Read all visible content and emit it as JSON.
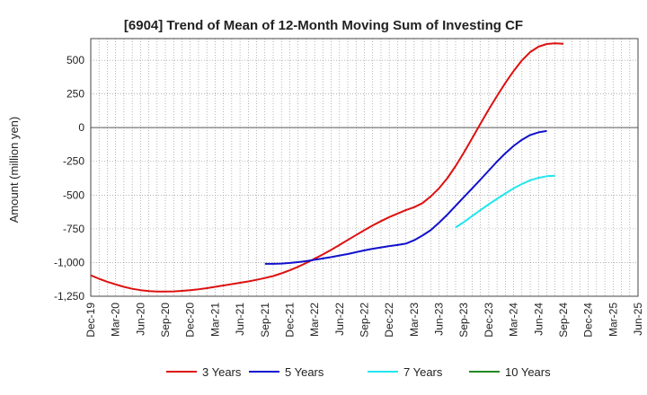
{
  "chart_data": {
    "type": "line",
    "title": "[6904]  Trend of Mean of 12-Month Moving Sum of Investing CF",
    "xlabel": "",
    "ylabel": "Amount (million yen)",
    "ylim": [
      -1250,
      660
    ],
    "yticks": [
      500,
      250,
      0,
      -250,
      -500,
      -750,
      -1000,
      -1250
    ],
    "ytick_labels": [
      "500",
      "250",
      "0",
      "-250",
      "-500",
      "-750",
      "-1,000",
      "-1,250"
    ],
    "x_range": [
      0,
      66
    ],
    "xtick_positions": [
      0,
      3,
      6,
      9,
      12,
      15,
      18,
      21,
      24,
      27,
      30,
      33,
      36,
      39,
      42,
      45,
      48,
      51,
      54,
      57,
      60,
      63,
      66
    ],
    "xtick_labels": [
      "Dec-19",
      "Mar-20",
      "Jun-20",
      "Sep-20",
      "Dec-20",
      "Mar-21",
      "Jun-21",
      "Sep-21",
      "Dec-21",
      "Mar-22",
      "Jun-22",
      "Sep-22",
      "Dec-22",
      "Mar-23",
      "Jun-23",
      "Sep-23",
      "Dec-23",
      "Mar-24",
      "Jun-24",
      "Sep-24",
      "Dec-24",
      "Mar-25",
      "Jun-25"
    ],
    "grid": true,
    "legend_position": "bottom",
    "series": [
      {
        "name": "3 Years",
        "color": "#dd1111",
        "points": [
          [
            0,
            -1095
          ],
          [
            1,
            -1120
          ],
          [
            2,
            -1143
          ],
          [
            3,
            -1162
          ],
          [
            4,
            -1180
          ],
          [
            5,
            -1195
          ],
          [
            6,
            -1205
          ],
          [
            7,
            -1212
          ],
          [
            8,
            -1215
          ],
          [
            9,
            -1215
          ],
          [
            10,
            -1214
          ],
          [
            11,
            -1210
          ],
          [
            12,
            -1205
          ],
          [
            13,
            -1198
          ],
          [
            14,
            -1190
          ],
          [
            15,
            -1180
          ],
          [
            16,
            -1170
          ],
          [
            17,
            -1160
          ],
          [
            18,
            -1150
          ],
          [
            19,
            -1140
          ],
          [
            20,
            -1128
          ],
          [
            21,
            -1115
          ],
          [
            22,
            -1100
          ],
          [
            23,
            -1080
          ],
          [
            24,
            -1058
          ],
          [
            25,
            -1032
          ],
          [
            26,
            -1003
          ],
          [
            27,
            -972
          ],
          [
            28,
            -940
          ],
          [
            29,
            -905
          ],
          [
            30,
            -870
          ],
          [
            31,
            -833
          ],
          [
            32,
            -796
          ],
          [
            33,
            -760
          ],
          [
            34,
            -725
          ],
          [
            35,
            -693
          ],
          [
            36,
            -663
          ],
          [
            37,
            -637
          ],
          [
            38,
            -612
          ],
          [
            39,
            -590
          ],
          [
            40,
            -560
          ],
          [
            41,
            -510
          ],
          [
            42,
            -450
          ],
          [
            43,
            -375
          ],
          [
            44,
            -285
          ],
          [
            45,
            -185
          ],
          [
            46,
            -78
          ],
          [
            47,
            30
          ],
          [
            48,
            135
          ],
          [
            49,
            235
          ],
          [
            50,
            332
          ],
          [
            51,
            420
          ],
          [
            52,
            498
          ],
          [
            53,
            560
          ],
          [
            54,
            600
          ],
          [
            55,
            620
          ],
          [
            56,
            625
          ],
          [
            57,
            622
          ]
        ]
      },
      {
        "name": "5 Years",
        "color": "#1111cc",
        "points": [
          [
            21,
            -1010
          ],
          [
            22,
            -1010
          ],
          [
            23,
            -1008
          ],
          [
            24,
            -1003
          ],
          [
            25,
            -997
          ],
          [
            26,
            -990
          ],
          [
            27,
            -980
          ],
          [
            28,
            -970
          ],
          [
            29,
            -960
          ],
          [
            30,
            -948
          ],
          [
            31,
            -937
          ],
          [
            32,
            -923
          ],
          [
            33,
            -910
          ],
          [
            34,
            -898
          ],
          [
            35,
            -888
          ],
          [
            36,
            -878
          ],
          [
            37,
            -870
          ],
          [
            38,
            -860
          ],
          [
            39,
            -835
          ],
          [
            40,
            -800
          ],
          [
            41,
            -760
          ],
          [
            42,
            -705
          ],
          [
            43,
            -645
          ],
          [
            44,
            -580
          ],
          [
            45,
            -515
          ],
          [
            46,
            -450
          ],
          [
            47,
            -385
          ],
          [
            48,
            -318
          ],
          [
            49,
            -252
          ],
          [
            50,
            -190
          ],
          [
            51,
            -135
          ],
          [
            52,
            -90
          ],
          [
            53,
            -55
          ],
          [
            54,
            -35
          ],
          [
            55,
            -25
          ]
        ]
      },
      {
        "name": "7 Years",
        "color": "#22e6ee",
        "points": [
          [
            44,
            -740
          ],
          [
            45,
            -700
          ],
          [
            46,
            -655
          ],
          [
            47,
            -612
          ],
          [
            48,
            -568
          ],
          [
            49,
            -528
          ],
          [
            50,
            -488
          ],
          [
            51,
            -450
          ],
          [
            52,
            -418
          ],
          [
            53,
            -390
          ],
          [
            54,
            -372
          ],
          [
            55,
            -360
          ],
          [
            56,
            -357
          ]
        ]
      },
      {
        "name": "10 Years",
        "color": "#228822",
        "points": []
      }
    ]
  }
}
